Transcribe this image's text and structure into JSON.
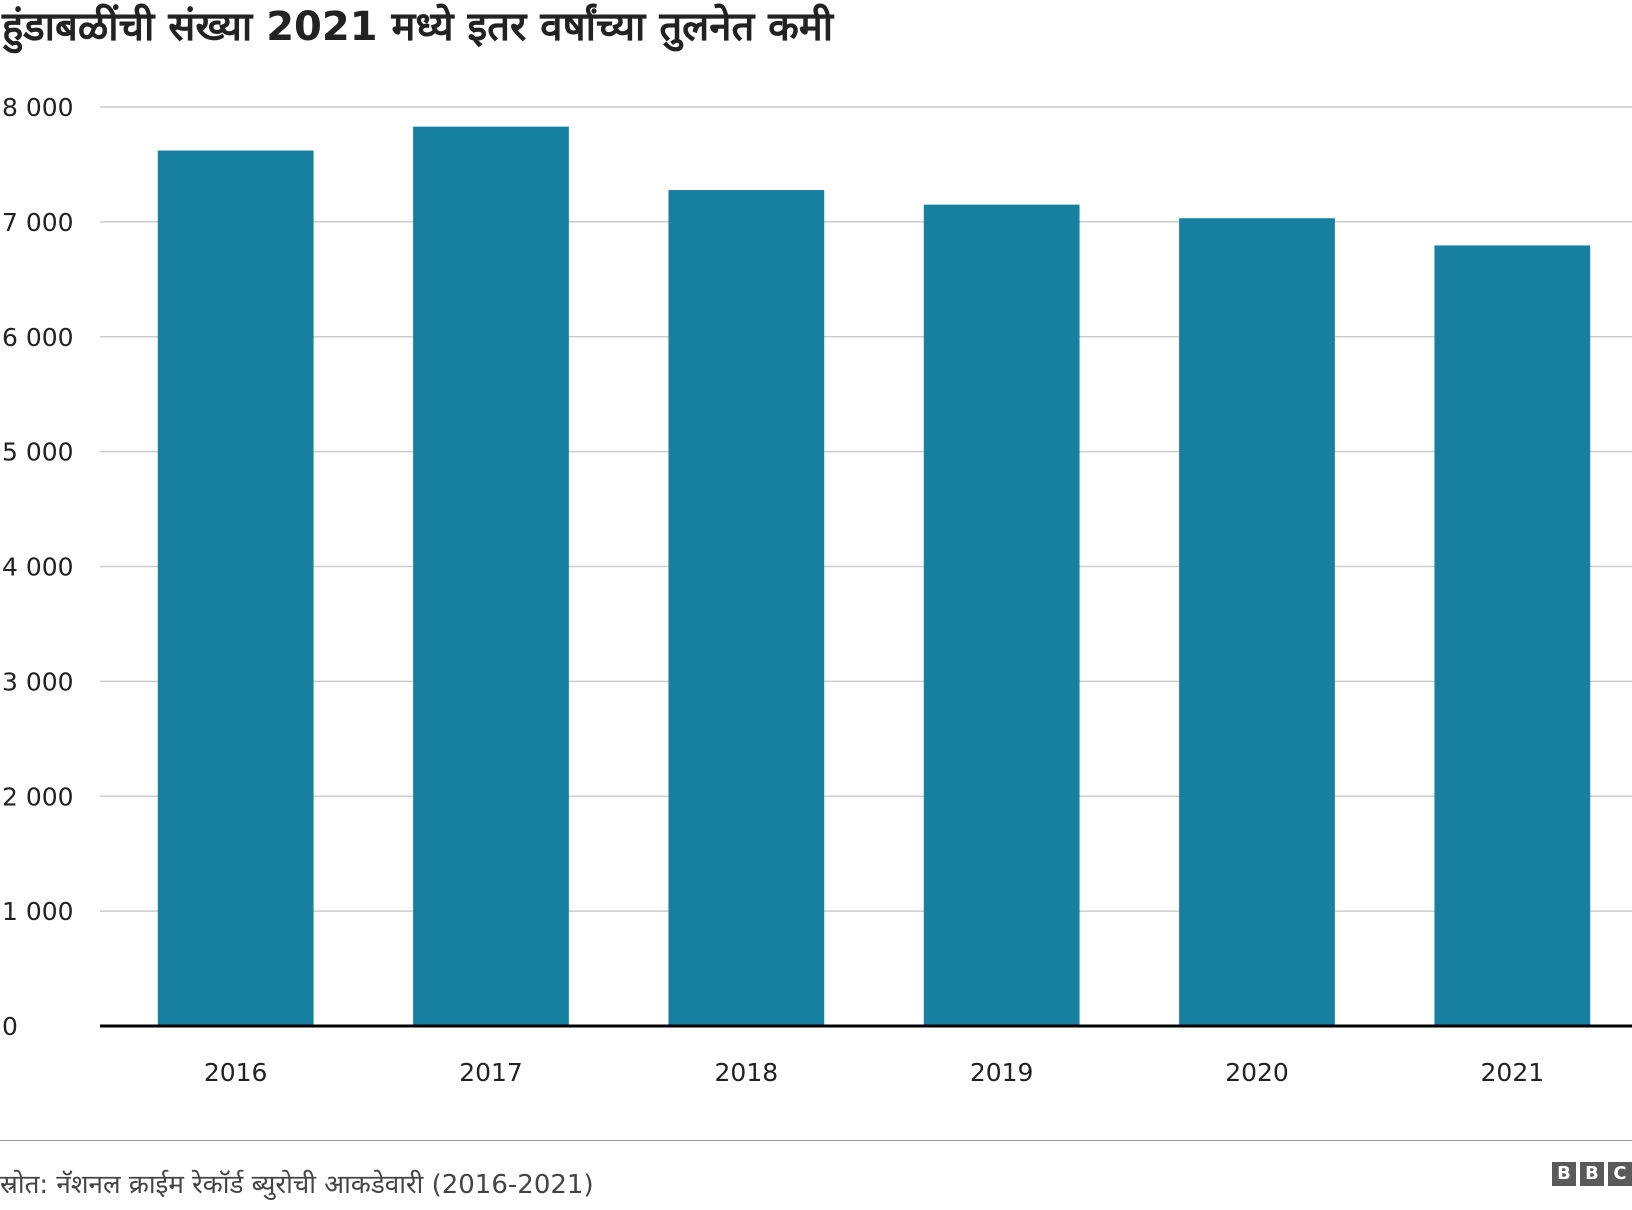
{
  "chart_data": {
    "type": "bar",
    "title": "हुंडाबळींची संख्या 2021 मध्ये इतर वर्षांच्या तुलनेत कमी",
    "categories": [
      "2016",
      "2017",
      "2018",
      "2019",
      "2020",
      "2021"
    ],
    "values": [
      7621,
      7829,
      7277,
      7150,
      7032,
      6795
    ],
    "xlabel": "",
    "ylabel": "",
    "ylim": [
      0,
      8000
    ],
    "yticks": [
      0,
      1000,
      2000,
      3000,
      4000,
      5000,
      6000,
      7000,
      8000
    ],
    "ytick_labels": [
      "0",
      "1 000",
      "2 000",
      "3 000",
      "4 000",
      "5 000",
      "6 000",
      "7 000",
      "8 000"
    ],
    "grid": true,
    "bar_color": "#1780a1",
    "grid_color": "#cccccc",
    "axis_color": "#000000"
  },
  "footer": {
    "source": "स्रोत: नॅशनल क्राईम रेकॉर्ड ब्युरोची आकडेवारी (2016-2021)",
    "logo": [
      "B",
      "B",
      "C"
    ]
  }
}
